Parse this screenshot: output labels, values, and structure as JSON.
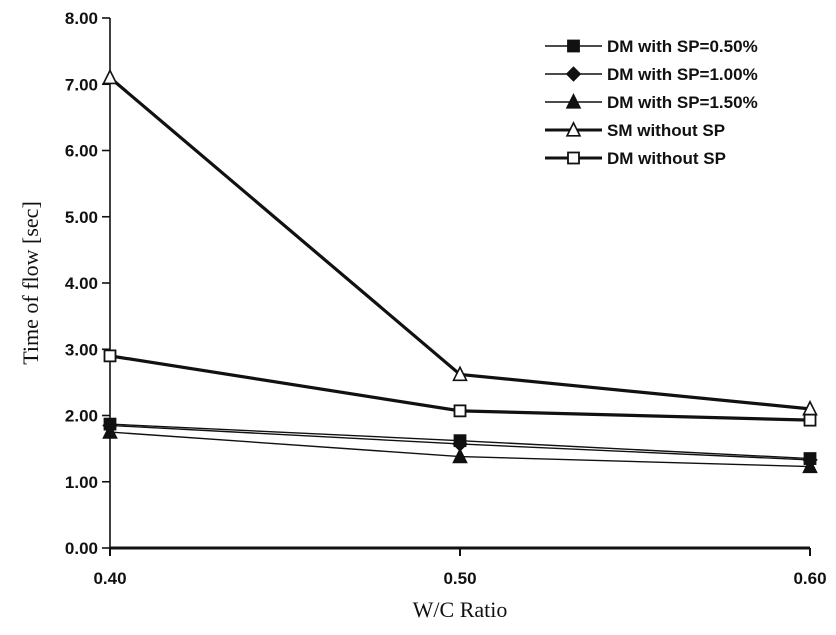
{
  "chart_data": {
    "type": "line",
    "x": [
      "0.40",
      "0.50",
      "0.60"
    ],
    "xlabel": "W/C Ratio",
    "ylabel": "Time of flow [sec]",
    "ylim": [
      0,
      8
    ],
    "yticks": [
      "0.00",
      "1.00",
      "2.00",
      "3.00",
      "4.00",
      "5.00",
      "6.00",
      "7.00",
      "8.00"
    ],
    "grid": false,
    "legend_position": "top-right",
    "series": [
      {
        "name": "DM with SP=0.50%",
        "marker": "filled-square",
        "line": "thin",
        "values": [
          1.87,
          1.62,
          1.35
        ]
      },
      {
        "name": "DM with SP=1.00%",
        "marker": "filled-diamond",
        "line": "thin",
        "values": [
          1.85,
          1.57,
          1.33
        ]
      },
      {
        "name": "DM with SP=1.50%",
        "marker": "filled-triangle",
        "line": "thin",
        "values": [
          1.75,
          1.38,
          1.23
        ]
      },
      {
        "name": "SM without SP",
        "marker": "open-triangle",
        "line": "thick",
        "values": [
          7.1,
          2.62,
          2.1
        ]
      },
      {
        "name": "DM without SP",
        "marker": "open-square",
        "line": "thick",
        "values": [
          2.9,
          2.07,
          1.93
        ]
      }
    ]
  }
}
